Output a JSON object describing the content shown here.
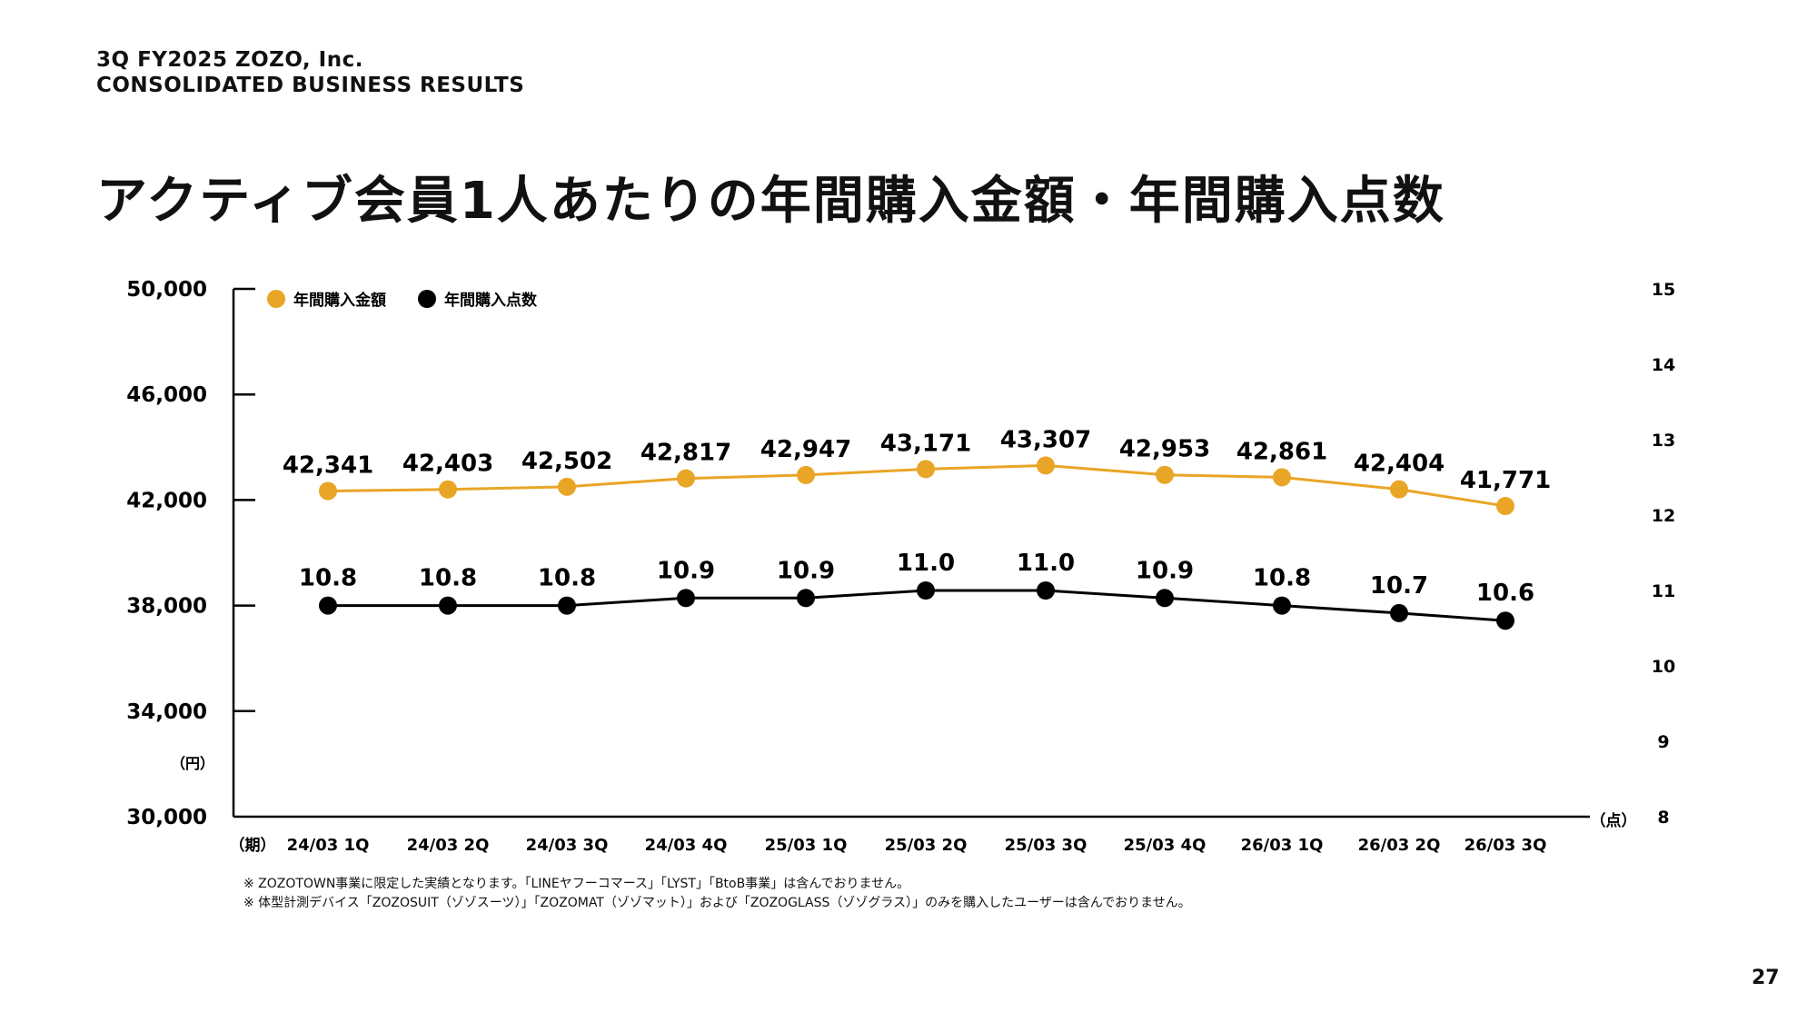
{
  "header": {
    "line1": "3Q FY2025 ZOZO, Inc.",
    "line2": "CONSOLIDATED BUSINESS RESULTS"
  },
  "title": "アクティブ会員1人あたりの年間購入金額・年間購入点数",
  "page_number": "27",
  "footnotes": [
    "※ ZOZOTOWN事業に限定した実績となります。「LINEヤフーコマース」「LYST」「BtoB事業」は含んでおりません。",
    "※ 体型計測デバイス「ZOZOSUIT（ゾゾスーツ）」「ZOZOMAT（ゾゾマット）」および「ZOZOGLASS（ゾゾグラス）」のみを購入したユーザーは含んでおりません。"
  ],
  "chart_data": {
    "type": "line",
    "categories": [
      "24/03 1Q",
      "24/03 2Q",
      "24/03 3Q",
      "24/03 4Q",
      "25/03 1Q",
      "25/03 2Q",
      "25/03 3Q",
      "25/03 4Q",
      "26/03 1Q",
      "26/03 2Q",
      "26/03 3Q"
    ],
    "xlabel": "（期）",
    "y_left": {
      "unit": "（円）",
      "range": [
        30000,
        50000
      ],
      "ticks": [
        "30,000",
        "34,000",
        "38,000",
        "42,000",
        "46,000",
        "50,000"
      ]
    },
    "y_right": {
      "unit": "（点）",
      "range": [
        8,
        15
      ],
      "ticks": [
        "8",
        "9",
        "10",
        "11",
        "12",
        "13",
        "14",
        "15"
      ]
    },
    "legend_position": "top-left",
    "grid": false,
    "series": [
      {
        "name": "年間購入金額",
        "axis": "left",
        "color": "#E9A526",
        "values": [
          42341,
          42403,
          42502,
          42817,
          42947,
          43171,
          43307,
          42953,
          42861,
          42404,
          41771
        ],
        "labels": [
          "42,341",
          "42,403",
          "42,502",
          "42,817",
          "42,947",
          "43,171",
          "43,307",
          "42,953",
          "42,861",
          "42,404",
          "41,771"
        ]
      },
      {
        "name": "年間購入点数",
        "axis": "right",
        "color": "#000000",
        "values": [
          10.8,
          10.8,
          10.8,
          10.9,
          10.9,
          11.0,
          11.0,
          10.9,
          10.8,
          10.7,
          10.6
        ],
        "labels": [
          "10.8",
          "10.8",
          "10.8",
          "10.9",
          "10.9",
          "11.0",
          "11.0",
          "10.9",
          "10.8",
          "10.7",
          "10.6"
        ]
      }
    ]
  }
}
